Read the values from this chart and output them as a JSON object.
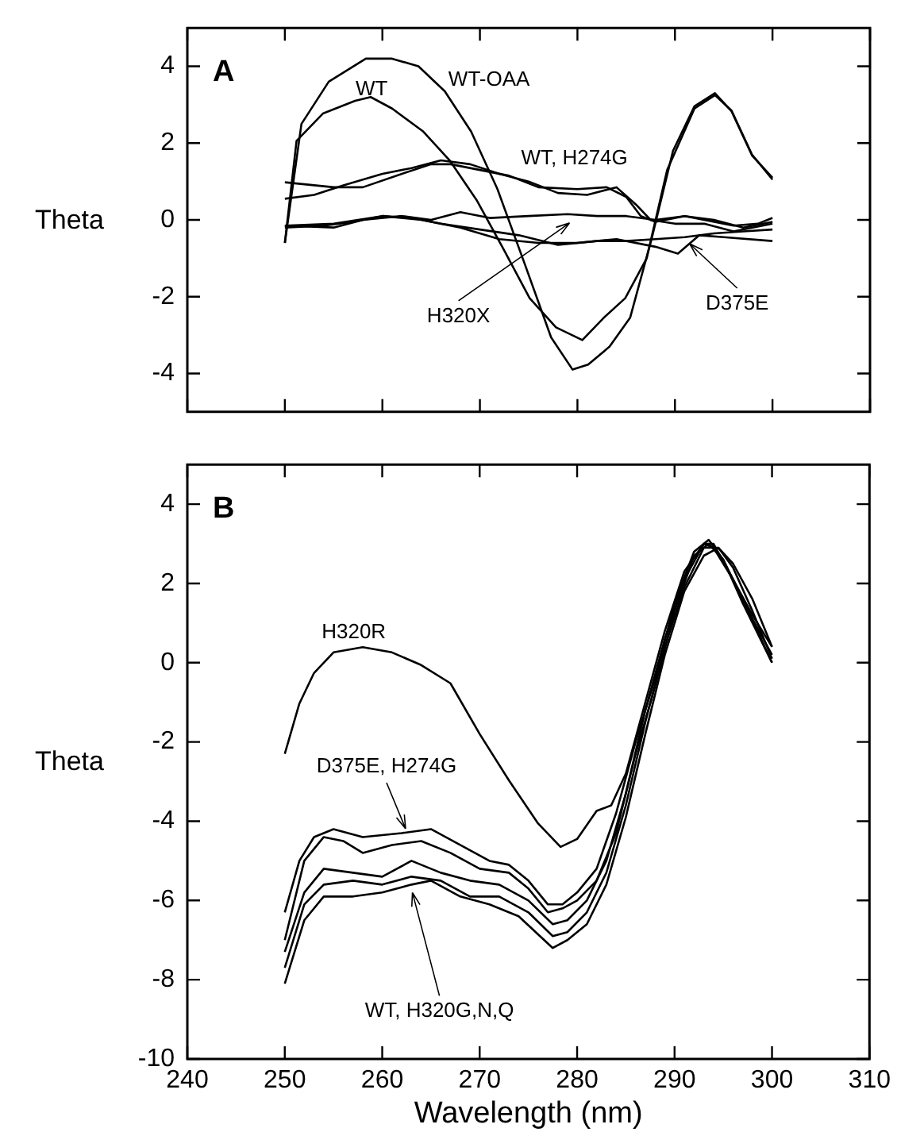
{
  "chart_data": [
    {
      "type": "line",
      "title": "A",
      "ylabel": "Theta",
      "xlim": [
        240,
        310
      ],
      "xticks": [
        240,
        250,
        260,
        270,
        280,
        290,
        300,
        310
      ],
      "ylim": [
        -5,
        5
      ],
      "yticks": [
        -4,
        -2,
        0,
        2,
        4
      ],
      "tick_labels": "y",
      "marker": "none",
      "annotations": [
        "WT-OAA",
        "WT",
        "WT, H274G",
        {
          "text": "H320X",
          "x": 279.2,
          "y": -0.08
        },
        {
          "text": "D375E",
          "x": 291.5,
          "y": -0.62
        }
      ],
      "series": [
        {
          "color": "#000000",
          "x": [
            250,
            251.7,
            254.5,
            258.3,
            261,
            263.7,
            266.4,
            269.1,
            271.8,
            274.6,
            277.3,
            279.5,
            281.1,
            283.3,
            285.4,
            287.6,
            289.8,
            292,
            294.1,
            295.8,
            297.9,
            300
          ],
          "values": [
            -0.6,
            2.5,
            3.6,
            4.2,
            4.2,
            4.0,
            3.35,
            2.3,
            0.8,
            -1.15,
            -3.06,
            -3.9,
            -3.77,
            -3.3,
            -2.55,
            -0.5,
            1.8,
            2.96,
            3.3,
            2.83,
            1.68,
            1.1
          ]
        },
        {
          "color": "#000000",
          "x": [
            250,
            251.2,
            253.9,
            257.2,
            258.8,
            261,
            264.2,
            266.9,
            269.7,
            272.4,
            275.1,
            277.8,
            280.5,
            282.7,
            284.9,
            287.1,
            289.2,
            292,
            294.1,
            295.8,
            297.9,
            300
          ],
          "values": [
            -0.6,
            2.06,
            2.77,
            3.1,
            3.2,
            2.9,
            2.3,
            1.55,
            0.5,
            -0.75,
            -2.04,
            -2.8,
            -3.13,
            -2.55,
            -2.04,
            -1.0,
            1.3,
            2.9,
            3.25,
            2.85,
            1.7,
            1.05
          ]
        },
        {
          "color": "#000000",
          "x": [
            250,
            255,
            258,
            262,
            265,
            267,
            270,
            273,
            276,
            280,
            283,
            285,
            286.5,
            288,
            291,
            293,
            296,
            298.5,
            300
          ],
          "values": [
            0.98,
            0.85,
            0.85,
            1.2,
            1.45,
            1.45,
            1.3,
            1.15,
            0.85,
            0.8,
            0.85,
            0.6,
            0.1,
            -0.05,
            0.1,
            0.0,
            -0.15,
            -0.1,
            0.05
          ]
        },
        {
          "color": "#000000",
          "x": [
            250,
            253,
            256,
            260,
            263,
            266,
            269,
            272,
            275,
            278,
            281,
            284,
            286,
            287.5,
            290,
            293,
            296,
            300
          ],
          "values": [
            0.55,
            0.65,
            0.9,
            1.2,
            1.35,
            1.55,
            1.45,
            1.2,
            1.0,
            0.7,
            0.65,
            0.85,
            0.4,
            0.0,
            -0.1,
            -0.1,
            -0.3,
            -0.1
          ]
        },
        {
          "color": "#000000",
          "x": [
            250,
            255,
            258,
            262,
            265,
            268,
            271,
            275,
            279,
            282,
            285,
            288,
            291,
            294,
            297,
            300
          ],
          "values": [
            -0.15,
            -0.2,
            0.0,
            0.1,
            0.0,
            0.2,
            0.05,
            0.1,
            0.15,
            0.1,
            0.1,
            0.0,
            0.1,
            0.0,
            -0.2,
            -0.05
          ]
        },
        {
          "color": "#000000",
          "x": [
            250,
            254,
            257,
            260,
            263,
            266,
            270,
            274,
            278,
            282,
            285,
            288,
            291,
            294,
            297,
            300
          ],
          "values": [
            -0.2,
            -0.15,
            -0.05,
            0.1,
            0.05,
            -0.1,
            -0.25,
            -0.4,
            -0.65,
            -0.55,
            -0.55,
            -0.5,
            -0.45,
            -0.35,
            -0.3,
            -0.25
          ]
        },
        {
          "color": "#000000",
          "x": [
            250,
            255,
            260,
            264,
            268,
            272,
            276,
            280,
            284,
            288,
            290.3,
            292.5,
            295,
            300
          ],
          "values": [
            -0.15,
            -0.1,
            0.1,
            0.0,
            -0.2,
            -0.5,
            -0.6,
            -0.6,
            -0.5,
            -0.7,
            -0.88,
            -0.4,
            -0.45,
            -0.55
          ]
        }
      ]
    },
    {
      "type": "line",
      "title": "B",
      "xlabel": "Wavelength (nm)",
      "ylabel": "Theta",
      "xlim": [
        240,
        310
      ],
      "xticks": [
        240,
        250,
        260,
        270,
        280,
        290,
        300,
        310
      ],
      "ylim": [
        -10,
        5
      ],
      "yticks": [
        -10,
        -8,
        -6,
        -4,
        -2,
        0,
        2,
        4
      ],
      "marker": "none",
      "annotations": [
        "H320R",
        {
          "text": "D375E, H274G",
          "x": 262.4,
          "y": -4.19
        },
        {
          "text": "WT, H320G,N,Q",
          "x": 263.1,
          "y": -5.8
        }
      ],
      "series": [
        {
          "color": "#000000",
          "x": [
            250,
            251.5,
            253,
            255,
            258,
            261,
            264,
            267,
            270,
            273,
            276,
            278.3,
            280,
            282,
            283.5,
            285,
            287,
            289,
            291,
            293,
            294,
            296,
            298,
            300
          ],
          "values": [
            -2.3,
            -1.03,
            -0.26,
            0.26,
            0.39,
            0.26,
            -0.06,
            -0.52,
            -1.8,
            -2.97,
            -4.06,
            -4.65,
            -4.45,
            -3.74,
            -3.6,
            -2.8,
            -1.0,
            0.8,
            2.3,
            3.0,
            2.9,
            2.1,
            1.2,
            0.4
          ]
        },
        {
          "color": "#000000",
          "x": [
            250,
            251.5,
            253,
            255,
            258,
            262,
            265,
            268,
            271,
            273,
            275,
            277,
            278.5,
            280,
            282,
            284,
            286,
            288,
            290,
            292,
            293.5,
            295,
            297,
            300
          ],
          "values": [
            -6.3,
            -5.0,
            -4.4,
            -4.2,
            -4.4,
            -4.3,
            -4.2,
            -4.6,
            -5.0,
            -5.1,
            -5.5,
            -6.1,
            -6.1,
            -5.8,
            -5.2,
            -3.8,
            -2.0,
            -0.4,
            1.5,
            2.8,
            3.1,
            2.6,
            1.6,
            0.0
          ]
        },
        {
          "color": "#000000",
          "x": [
            250,
            252,
            254,
            256,
            258,
            261,
            264,
            267,
            270,
            273,
            275,
            277,
            278.5,
            280,
            282,
            284,
            286,
            288,
            290,
            292,
            293.5,
            295,
            297,
            300
          ],
          "values": [
            -7.0,
            -5.0,
            -4.4,
            -4.5,
            -4.8,
            -4.6,
            -4.5,
            -4.8,
            -5.2,
            -5.3,
            -5.7,
            -6.3,
            -6.2,
            -6.0,
            -5.5,
            -4.3,
            -2.3,
            -0.6,
            1.3,
            2.7,
            3.0,
            2.6,
            1.5,
            0.0
          ]
        },
        {
          "color": "#000000",
          "x": [
            250,
            252,
            254,
            257,
            260,
            263,
            266,
            269,
            272,
            275,
            277.5,
            279,
            281,
            283,
            285,
            287,
            289,
            291,
            293,
            294,
            296,
            298,
            300
          ],
          "values": [
            -7.3,
            -5.8,
            -5.2,
            -5.3,
            -5.4,
            -5.0,
            -5.3,
            -5.5,
            -5.6,
            -6.0,
            -6.6,
            -6.5,
            -6.0,
            -5.0,
            -3.3,
            -1.2,
            0.6,
            2.1,
            3.0,
            3.0,
            2.1,
            1.1,
            0.2
          ]
        },
        {
          "color": "#000000",
          "x": [
            250,
            252,
            254,
            257,
            260,
            263,
            266,
            269,
            272,
            275,
            277.5,
            279,
            281,
            283,
            285,
            287,
            289,
            291,
            293,
            294.5,
            296,
            298,
            300
          ],
          "values": [
            -7.7,
            -6.1,
            -5.6,
            -5.5,
            -5.6,
            -5.4,
            -5.5,
            -5.9,
            -5.9,
            -6.3,
            -6.9,
            -6.8,
            -6.3,
            -5.3,
            -3.6,
            -1.5,
            0.4,
            1.9,
            2.9,
            2.9,
            2.4,
            1.3,
            0.1
          ]
        },
        {
          "color": "#000000",
          "x": [
            250,
            252,
            254,
            257,
            260,
            263,
            265,
            268,
            271,
            274,
            277.5,
            279,
            281,
            283,
            285,
            287,
            289,
            291,
            293,
            294.5,
            296,
            298,
            300
          ],
          "values": [
            -8.1,
            -6.5,
            -5.9,
            -5.9,
            -5.8,
            -5.6,
            -5.5,
            -5.9,
            -6.1,
            -6.4,
            -7.2,
            -7.0,
            -6.6,
            -5.6,
            -3.9,
            -1.8,
            0.2,
            1.8,
            2.7,
            2.9,
            2.5,
            1.6,
            0.4
          ]
        }
      ]
    }
  ]
}
